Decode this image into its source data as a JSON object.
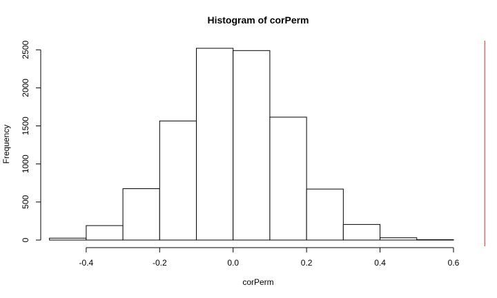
{
  "chart_data": {
    "type": "bar",
    "title": "Histogram of corPerm",
    "xlabel": "corPerm",
    "ylabel": "Frequency",
    "bins": [
      {
        "start": -0.5,
        "end": -0.4,
        "count": 25
      },
      {
        "start": -0.4,
        "end": -0.3,
        "count": 190
      },
      {
        "start": -0.3,
        "end": -0.2,
        "count": 675
      },
      {
        "start": -0.2,
        "end": -0.1,
        "count": 1565
      },
      {
        "start": -0.1,
        "end": 0.0,
        "count": 2520
      },
      {
        "start": 0.0,
        "end": 0.1,
        "count": 2490
      },
      {
        "start": 0.1,
        "end": 0.2,
        "count": 1615
      },
      {
        "start": 0.2,
        "end": 0.3,
        "count": 670
      },
      {
        "start": 0.3,
        "end": 0.4,
        "count": 205
      },
      {
        "start": 0.4,
        "end": 0.5,
        "count": 30
      },
      {
        "start": 0.5,
        "end": 0.6,
        "count": 5
      }
    ],
    "x_ticks": [
      "-0.4",
      "-0.2",
      "0.0",
      "0.2",
      "0.4",
      "0.6"
    ],
    "y_ticks": [
      "0",
      "500",
      "1000",
      "1500",
      "2000",
      "2500"
    ],
    "xlim": [
      -0.552,
      0.632
    ],
    "ylim": [
      0,
      2520
    ],
    "reference_line": {
      "x": 0.685,
      "color": "#cc3333"
    },
    "grid": false,
    "legend": "none"
  }
}
